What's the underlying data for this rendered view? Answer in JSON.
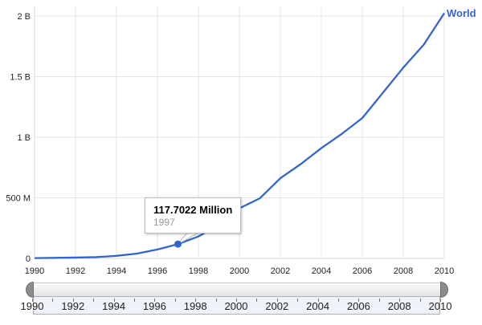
{
  "chart": {
    "series_label": "World",
    "tooltip": {
      "value": "117.7022 Million",
      "year": "1997"
    },
    "line_color": "#3366cc",
    "y_ticks": [
      {
        "label": "0",
        "value": 0
      },
      {
        "label": "500 M",
        "value": 500
      },
      {
        "label": "1 B",
        "value": 1000
      },
      {
        "label": "1.5 B",
        "value": 1500
      },
      {
        "label": "2 B",
        "value": 2000
      }
    ],
    "x_ticks": [
      1990,
      1992,
      1994,
      1996,
      1998,
      2000,
      2002,
      2004,
      2006,
      2008,
      2010
    ]
  },
  "chart_data": {
    "type": "line",
    "title": "",
    "xlabel": "",
    "ylabel": "",
    "units": "millions",
    "x": [
      1990,
      1991,
      1992,
      1993,
      1994,
      1995,
      1996,
      1997,
      1998,
      1999,
      2000,
      2001,
      2002,
      2003,
      2004,
      2005,
      2006,
      2007,
      2008,
      2009,
      2010
    ],
    "series": [
      {
        "name": "World",
        "values": [
          2.6,
          4.4,
          7,
          10.3,
          21,
          40,
          74,
          117.7022,
          181,
          277,
          413,
          496,
          662,
          779,
          910,
          1028,
          1158,
          1366,
          1574,
          1764,
          2023
        ]
      }
    ],
    "xlim": [
      1990,
      2010
    ],
    "ylim": [
      0,
      2080
    ],
    "grid": true,
    "legend_position": "end-of-line",
    "highlighted_point": {
      "x": 1997,
      "value": 117.7022,
      "label": "117.7022 Million"
    }
  },
  "slider": {
    "range": [
      1990,
      2010
    ],
    "year_labels": [
      1990,
      1992,
      1994,
      1996,
      1998,
      2000,
      2002,
      2004,
      2006,
      2008,
      2010
    ]
  }
}
